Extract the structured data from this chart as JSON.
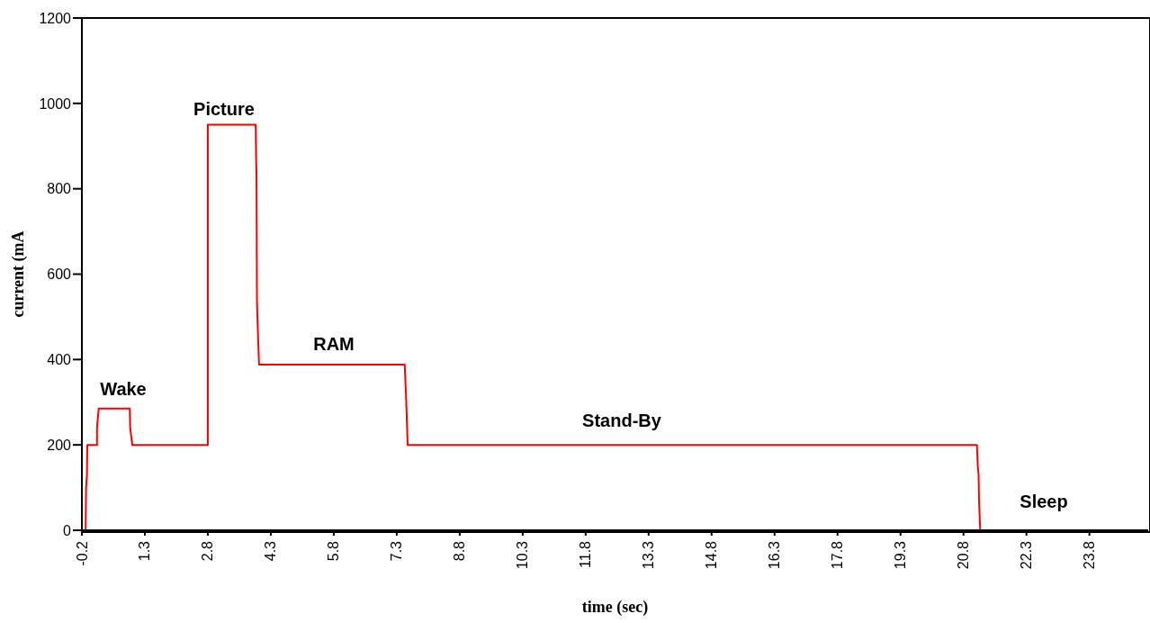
{
  "chart_data": {
    "type": "line",
    "xlabel": "time (sec)",
    "ylabel": "current (mA",
    "x": [
      -0.2,
      -0.11,
      -0.1,
      -0.08,
      -0.07,
      0.16,
      0.16,
      0.2,
      0.94,
      0.95,
      1.0,
      2.8,
      2.8,
      3.94,
      3.95,
      3.96,
      3.97,
      3.98,
      4.02,
      7.49,
      7.51,
      7.52,
      7.56,
      21.12,
      21.14,
      21.16,
      21.17,
      21.19,
      21.2,
      25.2
    ],
    "series": [
      {
        "color": "#ff0000",
        "values": [
          0,
          0,
          100,
          130,
          200,
          200,
          240,
          285,
          285,
          240,
          200,
          200,
          950,
          950,
          870,
          830,
          540,
          500,
          388,
          388,
          340,
          320,
          200,
          200,
          150,
          130,
          70,
          20,
          0,
          0
        ]
      }
    ],
    "xlim": [
      -0.2,
      25.2
    ],
    "xticks": [
      -0.2,
      1.3,
      2.8,
      4.3,
      5.8,
      7.3,
      8.8,
      10.3,
      11.8,
      13.3,
      14.8,
      16.3,
      17.8,
      19.3,
      20.8,
      22.3,
      23.8
    ],
    "ylim": [
      0,
      1200
    ],
    "yticks": [
      0,
      200,
      400,
      600,
      800,
      1000,
      1200
    ],
    "grid": false,
    "marker": "none",
    "line_style": "solid",
    "annotations": [
      "Wake",
      "Picture",
      "RAM",
      "Stand-By",
      "Sleep"
    ]
  }
}
